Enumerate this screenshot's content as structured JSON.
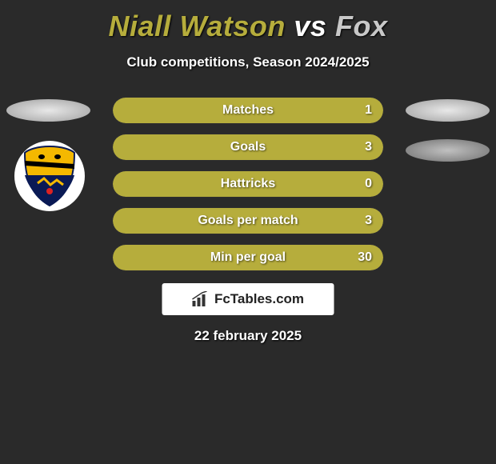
{
  "title": {
    "player1": "Niall Watson",
    "vs": "vs",
    "player2": "Fox"
  },
  "subtitle": "Club competitions, Season 2024/2025",
  "colors": {
    "p1": "#b6ad3c",
    "p2": "#c8c8c8",
    "bar_bg": "#3a3a3a"
  },
  "stats": [
    {
      "label": "Matches",
      "p1_value": "1",
      "p1_width_pct": 100
    },
    {
      "label": "Goals",
      "p1_value": "3",
      "p1_width_pct": 100
    },
    {
      "label": "Hattricks",
      "p1_value": "0",
      "p1_width_pct": 100
    },
    {
      "label": "Goals per match",
      "p1_value": "3",
      "p1_width_pct": 100
    },
    {
      "label": "Min per goal",
      "p1_value": "30",
      "p1_width_pct": 100
    }
  ],
  "logo": "FcTables.com",
  "date": "22 february 2025",
  "crest": {
    "name": "southport-fc",
    "bg": "#ffffff",
    "shield_top": "#f4b800",
    "shield_bottom": "#0a1a55",
    "stripe": "#000000"
  }
}
